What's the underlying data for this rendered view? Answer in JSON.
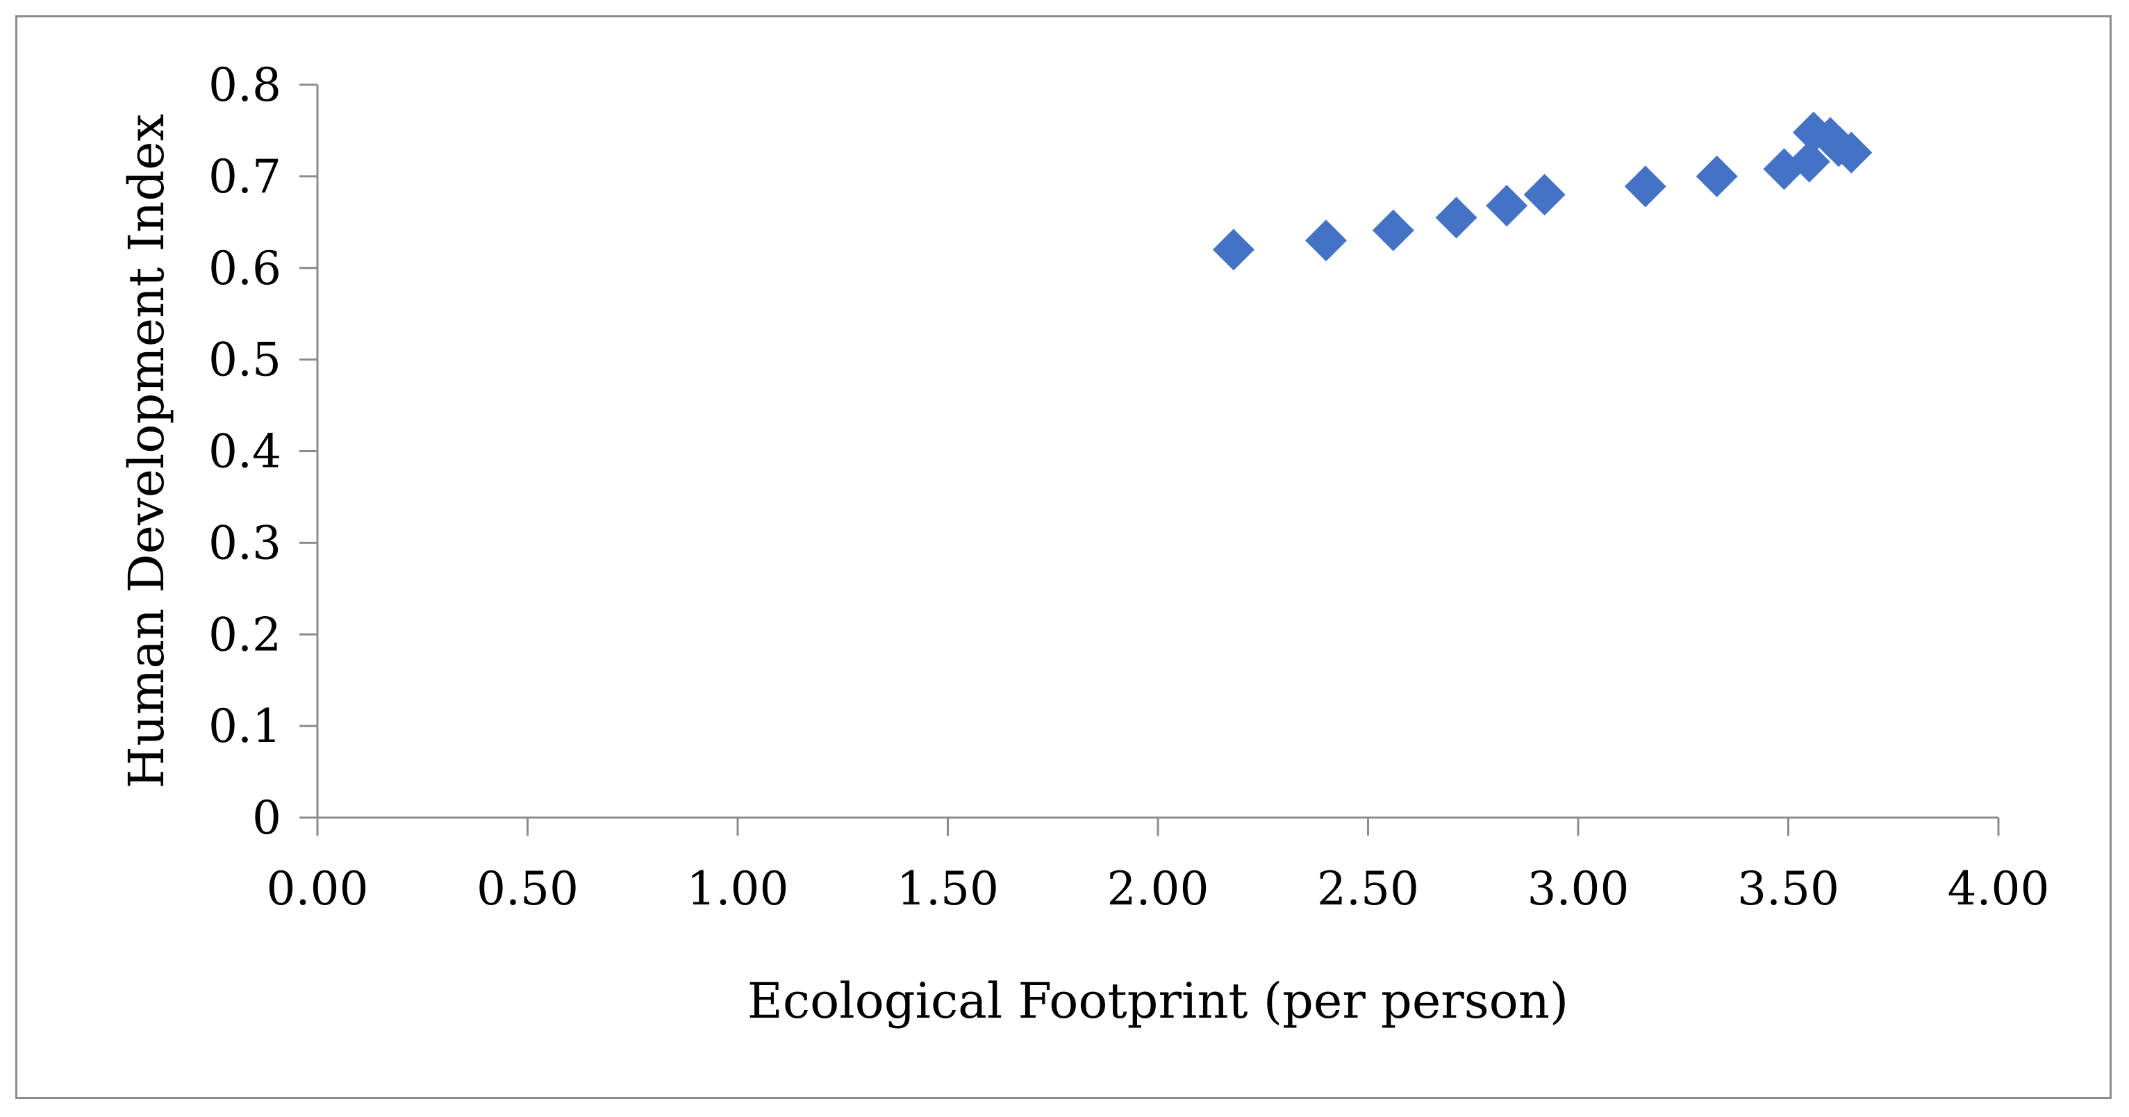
{
  "chart_data": {
    "type": "scatter",
    "title": "",
    "xlabel": "Ecological Footprint (per person)",
    "ylabel": "Human Development Index",
    "xlim": [
      0,
      4
    ],
    "ylim": [
      0,
      0.8
    ],
    "x_ticks": [
      "0.00",
      "0.50",
      "1.00",
      "1.50",
      "2.00",
      "2.50",
      "3.00",
      "3.50",
      "4.00"
    ],
    "y_ticks": [
      "0",
      "0.1",
      "0.2",
      "0.3",
      "0.4",
      "0.5",
      "0.6",
      "0.7",
      "0.8"
    ],
    "x_tick_values": [
      0,
      0.5,
      1,
      1.5,
      2,
      2.5,
      3,
      3.5,
      4
    ],
    "y_tick_values": [
      0,
      0.1,
      0.2,
      0.3,
      0.4,
      0.5,
      0.6,
      0.7,
      0.8
    ],
    "grid": false,
    "legend": "none",
    "marker": "diamond",
    "marker_color": "#4472C4",
    "axis_color": "#8c8c8c",
    "series": [
      {
        "x": [
          2.18,
          2.4,
          2.56,
          2.71,
          2.83,
          2.92,
          3.16,
          3.33,
          3.49,
          3.55,
          3.56,
          3.6,
          3.62,
          3.65
        ],
        "y": [
          0.62,
          0.63,
          0.641,
          0.655,
          0.668,
          0.68,
          0.689,
          0.7,
          0.708,
          0.716,
          0.748,
          0.742,
          0.733,
          0.726
        ]
      }
    ]
  }
}
